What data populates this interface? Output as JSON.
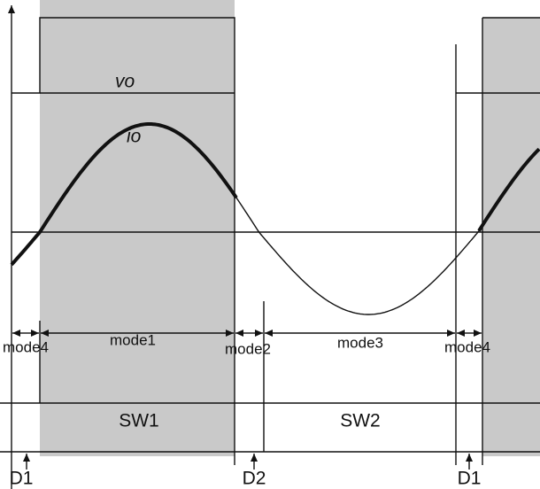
{
  "waveforms": {
    "vo": "vo",
    "io": "io"
  },
  "modes": [
    "mode4",
    "mode1",
    "mode2",
    "mode3",
    "mode4"
  ],
  "switches": [
    "SW1",
    "SW2"
  ],
  "diodes": [
    "D1",
    "D2",
    "D1"
  ]
}
